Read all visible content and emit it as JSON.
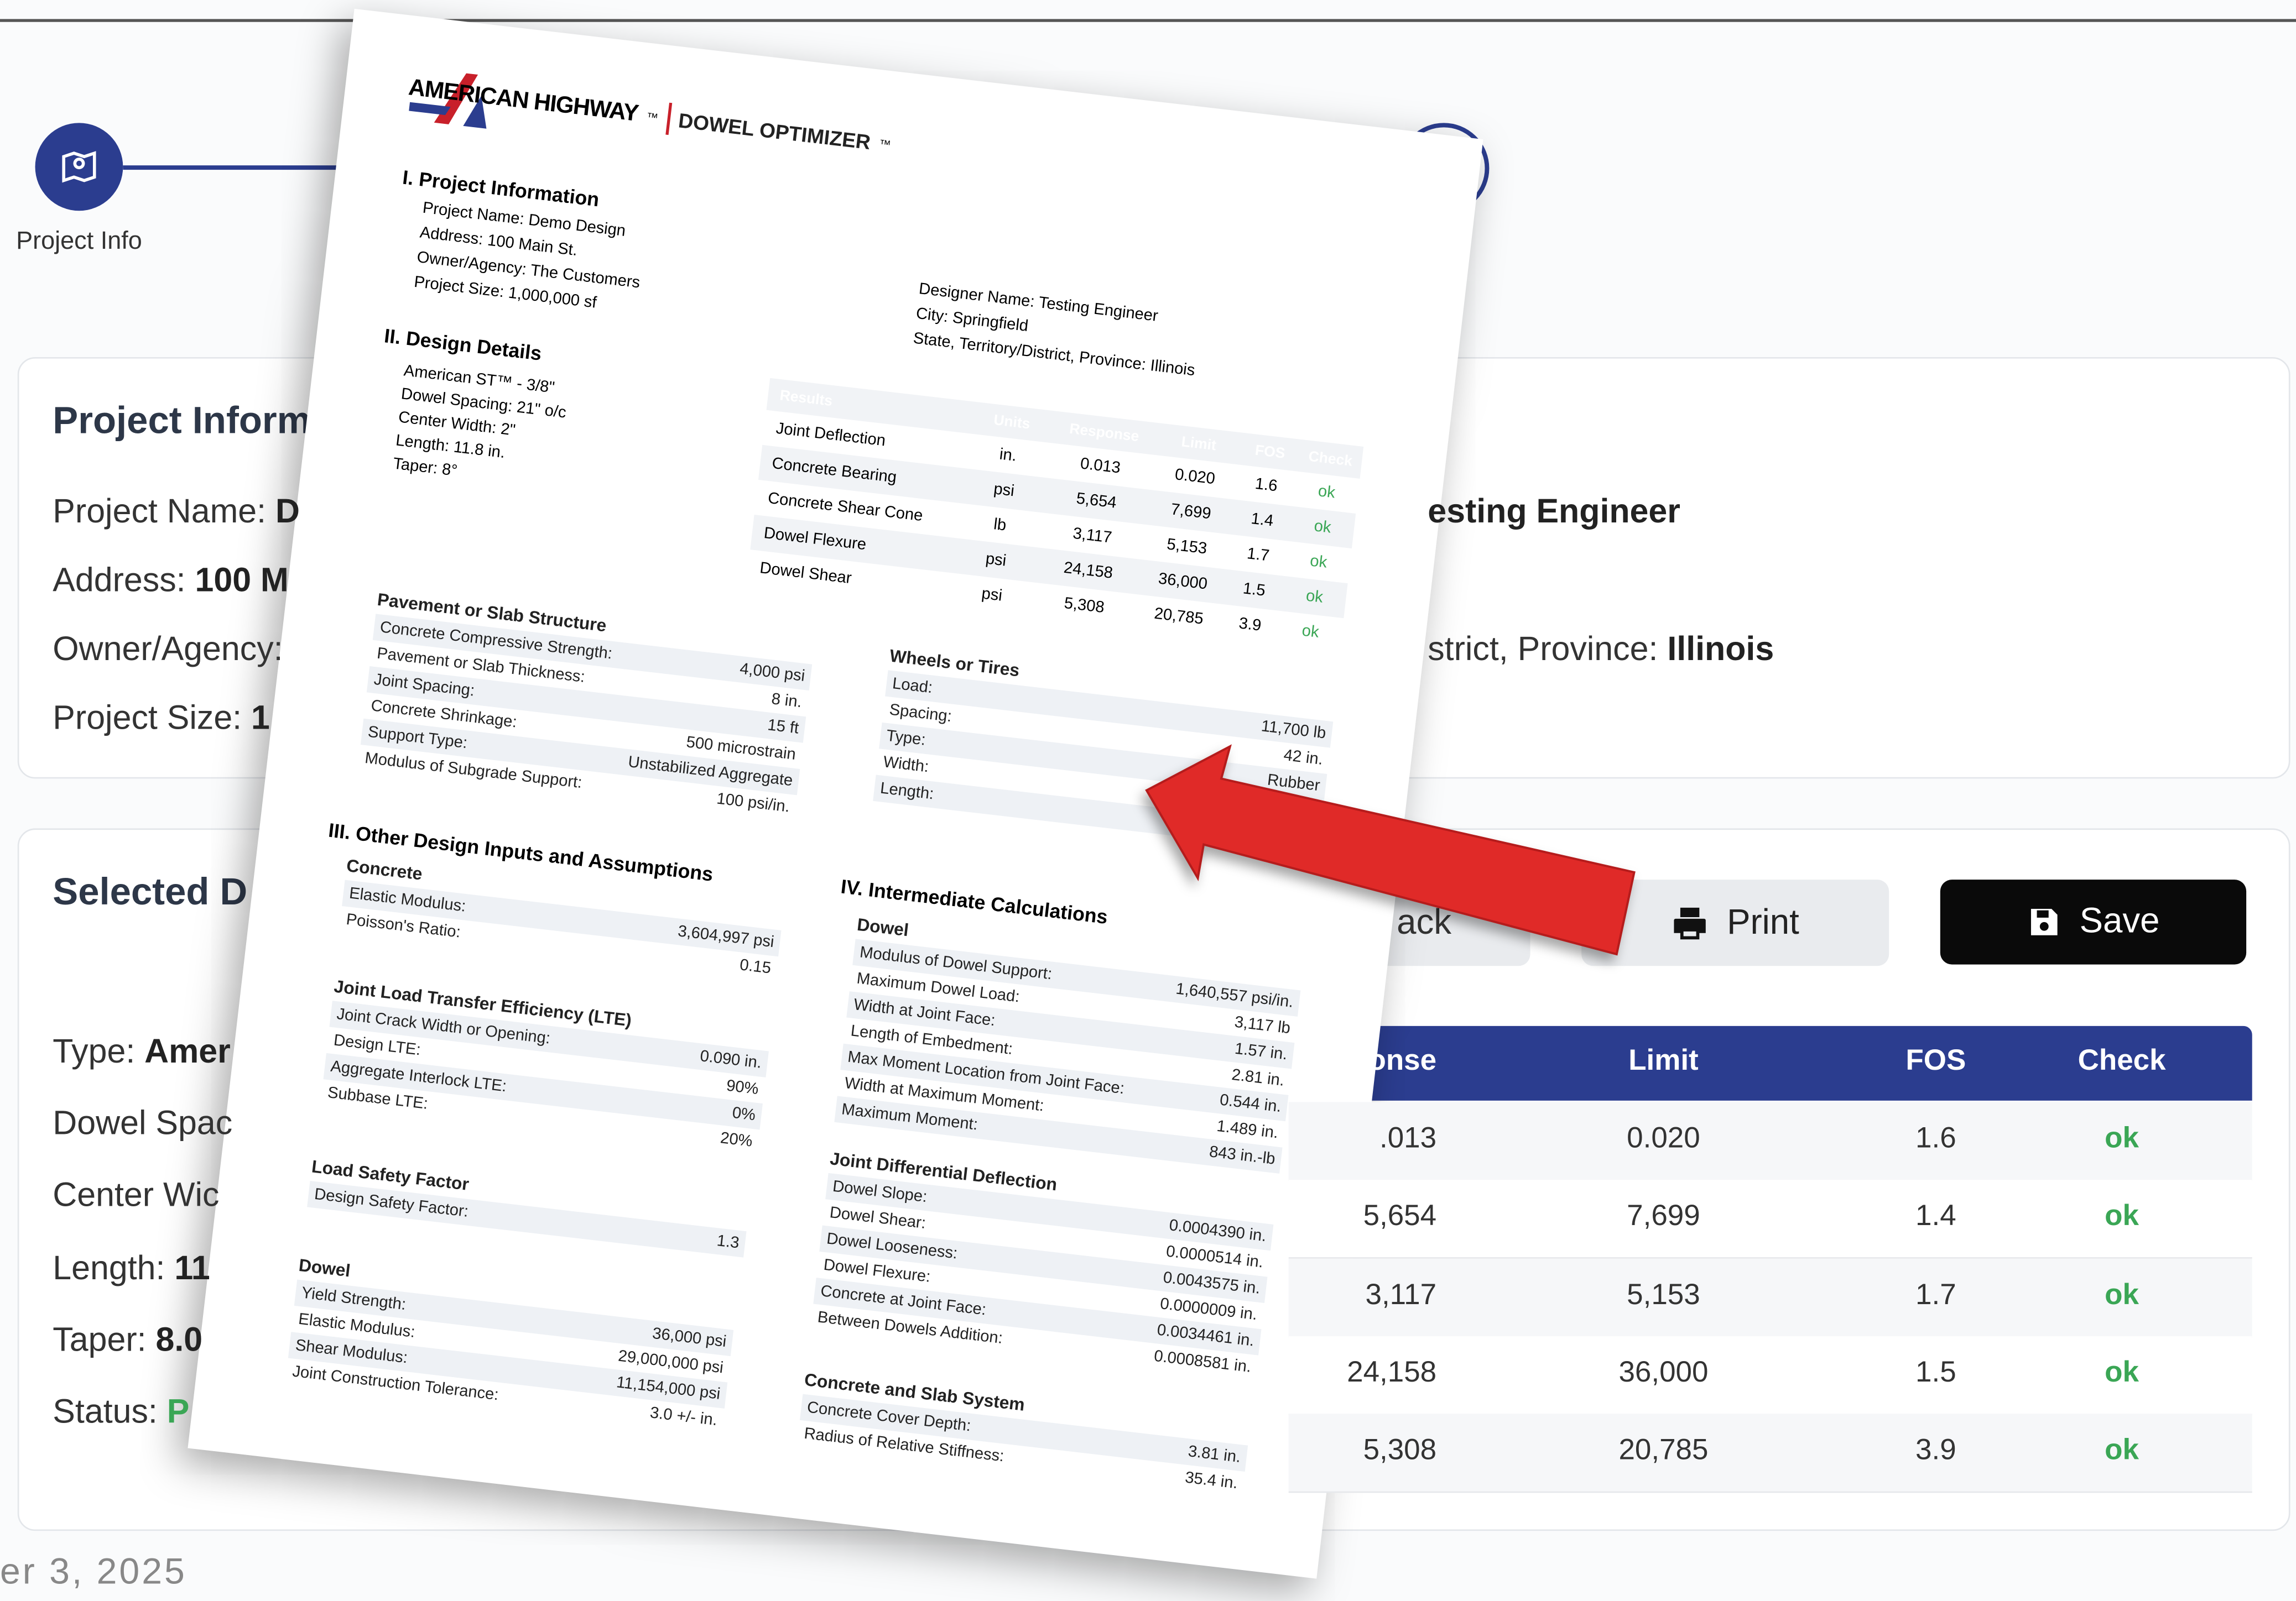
{
  "stepper": {
    "steps": [
      {
        "label": "Project Info"
      }
    ]
  },
  "project_card": {
    "title": "Project Inform",
    "fields": [
      {
        "label": "Project Name:",
        "value": "D"
      },
      {
        "label": "Address:",
        "value": "100 M"
      },
      {
        "label": "Owner/Agency:"
      },
      {
        "label": "Project Size:",
        "value": "1"
      }
    ],
    "right_fields": [
      {
        "value": "esting Engineer"
      },
      {
        "label": "strict, Province:",
        "value": "Illinois"
      }
    ]
  },
  "design_card": {
    "title": "Selected D",
    "fields": [
      {
        "label": "Type:",
        "value": "Amer"
      },
      {
        "label": "Dowel Spac"
      },
      {
        "label": "Center Wic"
      },
      {
        "label": "Length:",
        "value": "11"
      },
      {
        "label": "Taper:",
        "value": "8.0"
      },
      {
        "label": "Status:",
        "value": "P"
      }
    ]
  },
  "buttons": [
    "ack",
    "Print",
    "Save"
  ],
  "results_table": {
    "headers": [
      "onse",
      "Limit",
      "FOS",
      "Check"
    ],
    "rows": [
      [
        ".013",
        "0.020",
        "1.6",
        "ok"
      ],
      [
        "5,654",
        "7,699",
        "1.4",
        "ok"
      ],
      [
        "3,117",
        "5,153",
        "1.7",
        "ok"
      ],
      [
        "24,158",
        "36,000",
        "1.5",
        "ok"
      ],
      [
        "5,308",
        "20,785",
        "3.9",
        "ok"
      ]
    ]
  },
  "footer_date": "er 3, 2025",
  "report": {
    "brand": "AMERICAN HIGHWAY",
    "product": "DOWEL OPTIMIZER",
    "tm": "™",
    "project_info": {
      "heading": "I. Project Information",
      "left": [
        {
          "label": "Project Name:",
          "value": "Demo Design"
        },
        {
          "label": "Address:",
          "value": "100 Main St."
        },
        {
          "label": "Owner/Agency:",
          "value": "The Customers"
        },
        {
          "label": "Project Size:",
          "value": "1,000,000 sf"
        }
      ],
      "right": [
        {
          "label": "Designer Name:",
          "value": "Testing Engineer"
        },
        {
          "label": "City:",
          "value": "Springfield"
        },
        {
          "label": "State, Territory/District, Province:",
          "value": "Illinois"
        }
      ]
    },
    "design_details": {
      "heading": "II. Design Details",
      "lines": [
        "American ST™ - 3/8\"",
        "Dowel Spacing: 21\" o/c",
        "Center Width: 2\"",
        "Length: 11.8 in.",
        "Taper: 8°"
      ]
    },
    "results": {
      "headers": [
        "Results",
        "Units",
        "Response",
        "Limit",
        "FOS",
        "Check"
      ],
      "rows": [
        [
          "Joint Deflection",
          "in.",
          "0.013",
          "0.020",
          "1.6",
          "ok"
        ],
        [
          "Concrete Bearing",
          "psi",
          "5,654",
          "7,699",
          "1.4",
          "ok"
        ],
        [
          "Concrete Shear Cone",
          "lb",
          "3,117",
          "5,153",
          "1.7",
          "ok"
        ],
        [
          "Dowel Flexure",
          "psi",
          "24,158",
          "36,000",
          "1.5",
          "ok"
        ],
        [
          "Dowel Shear",
          "psi",
          "5,308",
          "20,785",
          "3.9",
          "ok"
        ]
      ]
    },
    "pavement": {
      "heading": "Pavement or Slab Structure",
      "rows": [
        {
          "label": "Concrete Compressive Strength:",
          "value": "4,000 psi"
        },
        {
          "label": "Pavement or Slab Thickness:",
          "value": "8 in."
        },
        {
          "label": "Joint Spacing:",
          "value": "15 ft"
        },
        {
          "label": "Concrete Shrinkage:",
          "value": "500 microstrain"
        },
        {
          "label": "Support Type:",
          "value": "Unstabilized Aggregate"
        },
        {
          "label": "Modulus of Subgrade Support:",
          "value": "100 psi/in."
        }
      ]
    },
    "wheels": {
      "heading": "Wheels or Tires",
      "rows": [
        {
          "label": "Load:",
          "value": "11,700 lb"
        },
        {
          "label": "Spacing:",
          "value": "42 in."
        },
        {
          "label": "Type:",
          "value": "Rubber"
        },
        {
          "label": "Width:"
        },
        {
          "label": "Length:"
        }
      ]
    },
    "section3_heading": "III. Other Design Inputs and Assumptions",
    "concrete": {
      "heading": "Concrete",
      "rows": [
        {
          "label": "Elastic Modulus:",
          "value": "3,604,997 psi"
        },
        {
          "label": "Poisson's Ratio:",
          "value": "0.15"
        }
      ]
    },
    "lte": {
      "heading": "Joint Load Transfer Efficiency (LTE)",
      "rows": [
        {
          "label": "Joint Crack Width or Opening:",
          "value": "0.090 in."
        },
        {
          "label": "Design LTE:",
          "value": "90%"
        },
        {
          "label": "Aggregate Interlock LTE:",
          "value": "0%"
        },
        {
          "label": "Subbase LTE:",
          "value": "20%"
        }
      ]
    },
    "load_safety": {
      "heading": "Load Safety Factor",
      "rows": [
        {
          "label": "Design Safety Factor:",
          "value": "1.3"
        }
      ]
    },
    "dowel_props": {
      "heading": "Dowel",
      "rows": [
        {
          "label": "Yield Strength:",
          "value": "36,000 psi"
        },
        {
          "label": "Elastic Modulus:",
          "value": "29,000,000 psi"
        },
        {
          "label": "Shear Modulus:",
          "value": "11,154,000 psi"
        },
        {
          "label": "Joint Construction Tolerance:",
          "value": "3.0 +/- in."
        }
      ]
    },
    "section4_heading": "IV. Intermediate Calculations",
    "dowel_calc": {
      "heading": "Dowel",
      "rows": [
        {
          "label": "Modulus of Dowel Support:",
          "value": "1,640,557 psi/in."
        },
        {
          "label": "Maximum Dowel Load:",
          "value": "3,117 lb"
        },
        {
          "label": "Width at Joint Face:",
          "value": "1.57 in."
        },
        {
          "label": "Length of Embedment:",
          "value": "2.81 in."
        },
        {
          "label": "Max Moment Location from Joint Face:",
          "value": "0.544 in."
        },
        {
          "label": "Width at Maximum Moment:",
          "value": "1.489 in."
        },
        {
          "label": "Maximum Moment:",
          "value": "843 in.-lb"
        }
      ]
    },
    "jdd": {
      "heading": "Joint Differential Deflection",
      "rows": [
        {
          "label": "Dowel Slope:",
          "value": "0.0004390 in."
        },
        {
          "label": "Dowel Shear:",
          "value": "0.0000514 in."
        },
        {
          "label": "Dowel Looseness:",
          "value": "0.0043575 in."
        },
        {
          "label": "Dowel Flexure:",
          "value": "0.0000009 in."
        },
        {
          "label": "Concrete at Joint Face:",
          "value": "0.0034461 in."
        },
        {
          "label": "Between Dowels Addition:",
          "value": "0.0008581 in."
        }
      ]
    },
    "slab": {
      "heading": "Concrete and Slab System",
      "rows": [
        {
          "label": "Concrete Cover Depth:",
          "value": "3.81 in."
        },
        {
          "label": "Radius of Relative Stiffness:",
          "value": "35.4 in."
        }
      ]
    }
  }
}
